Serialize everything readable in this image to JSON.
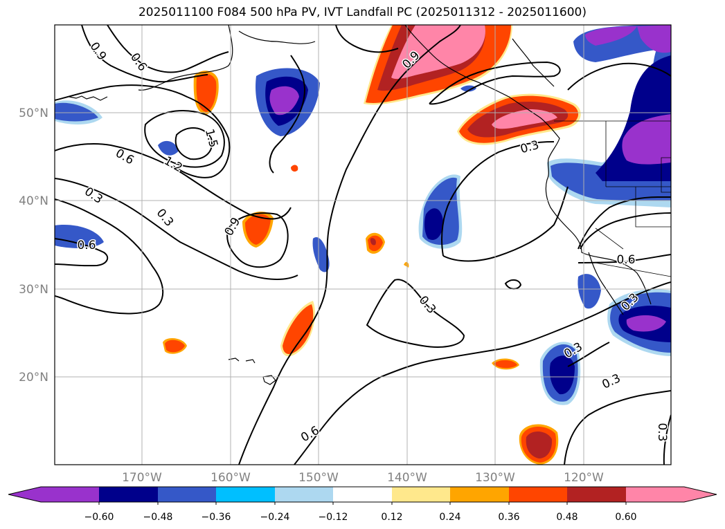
{
  "title": "2025011100 F084 500 hPa PV, IVT Landfall PC (2025011312 - 2025011600)",
  "map": {
    "lat_labels": [
      "50°N",
      "40°N",
      "30°N",
      "20°N"
    ],
    "lon_labels": [
      "170°W",
      "160°W",
      "150°W",
      "140°W",
      "130°W",
      "120°W"
    ],
    "contour_labels": [
      "0.9",
      "0.6",
      "1.5",
      "1.2",
      "0.6",
      "0.3",
      "0.3",
      "0.9",
      "0.6",
      "0.9",
      "0.3",
      "0.3",
      "0.6",
      "0.3",
      "0.3",
      "0.3",
      "0.6",
      "0.3"
    ]
  },
  "colorbar": {
    "tick_labels": [
      "−0.60",
      "−0.48",
      "−0.36",
      "−0.24",
      "−0.12",
      "0.12",
      "0.24",
      "0.36",
      "0.48",
      "0.60"
    ],
    "colors": [
      "#9932cc",
      "#00008b",
      "#3558c8",
      "#00bfff",
      "#add8f0",
      "#ffffff",
      "#ffe88c",
      "#ffa500",
      "#ff4500",
      "#b22222",
      "#ff85a8"
    ]
  }
}
